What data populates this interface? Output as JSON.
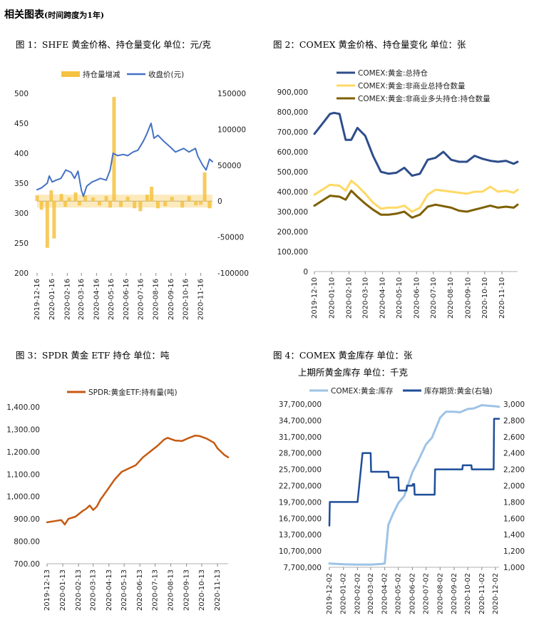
{
  "heading": {
    "main": "相关图表",
    "note": "(时间跨度为1年)"
  },
  "charts": [
    {
      "id": "fig1",
      "titles": [
        "图 1：SHFE 黄金价格、持仓量变化   单位：元/克"
      ],
      "legend": [
        "持仓量增减",
        "收盘价(元)"
      ],
      "x_ticks": [
        "2019-12-16",
        "2020-01-16",
        "2020-02-16",
        "2020-03-16",
        "2020-04-16",
        "2020-05-16",
        "2020-06-16",
        "2020-07-16",
        "2020-08-16",
        "2020-09-16",
        "2020-10-16",
        "2020-11-16"
      ],
      "y_left_ticks": [
        "500",
        "450",
        "400",
        "350",
        "300",
        "250",
        "200"
      ],
      "y_right_ticks": [
        "150000",
        "100000",
        "50000",
        "0",
        "-50000",
        "-100000"
      ]
    },
    {
      "id": "fig2",
      "titles": [
        "图 2：COMEX 黄金价格、持仓量变化   单位：张"
      ],
      "legend": [
        "COMEX:黄金:总持仓",
        "COMEX:黄金:非商业总持仓数量",
        "COMEX:黄金:非商业多头持仓:持仓数量"
      ],
      "x_ticks": [
        "2019-12-10",
        "2020-01-10",
        "2020-02-10",
        "2020-03-10",
        "2020-04-10",
        "2020-05-10",
        "2020-06-10",
        "2020-07-10",
        "2020-08-10",
        "2020-09-10",
        "2020-10-10",
        "2020-11-10"
      ],
      "y_ticks": [
        "900,000",
        "800,000",
        "700,000",
        "600,000",
        "500,000",
        "400,000",
        "300,000",
        "200,000",
        "100,000",
        "0"
      ]
    },
    {
      "id": "fig3",
      "titles": [
        "图 3：SPDR 黄金 ETF 持仓   单位：吨"
      ],
      "legend": [
        "SPDR:黄金ETF:持有量(吨)"
      ],
      "x_ticks": [
        "2019-12-13",
        "2020-01-13",
        "2020-02-13",
        "2020-03-13",
        "2020-04-13",
        "2020-05-13",
        "2020-06-13",
        "2020-07-13",
        "2020-08-13",
        "2020-09-13",
        "2020-10-13",
        "2020-11-13"
      ],
      "y_ticks": [
        "1,400.00",
        "1,300.00",
        "1,200.00",
        "1,100.00",
        "1,000.00",
        "900.00",
        "800.00",
        "700.00"
      ]
    },
    {
      "id": "fig4",
      "titles": [
        "图 4：COMEX 黄金库存   单位：张",
        "上期所黄金库存   单位：千克"
      ],
      "legend": [
        "COMEX:黄金:库存",
        "库存期货:黄金(右轴)"
      ],
      "x_ticks": [
        "2019-12-02",
        "2020-01-02",
        "2020-02-02",
        "2020-03-02",
        "2020-04-02",
        "2020-05-02",
        "2020-06-02",
        "2020-07-02",
        "2020-08-02",
        "2020-09-02",
        "2020-10-02",
        "2020-11-02",
        "2020-12-02"
      ],
      "y_left_ticks": [
        "37,700,000",
        "34,700,000",
        "31,700,000",
        "28,700,000",
        "25,700,000",
        "22,700,000",
        "19,700,000",
        "16,700,000",
        "13,700,000",
        "10,700,000",
        "7,700,000"
      ],
      "y_right_ticks": [
        "3,000",
        "2,800",
        "2,600",
        "2,400",
        "2,200",
        "2,000",
        "1,800",
        "1,600",
        "1,400",
        "1,200",
        "1,000"
      ]
    }
  ],
  "colors": {
    "orange_bar": "#F5C242",
    "blue": "#4472C4",
    "navy": "#2E4D8B",
    "yellow": "#FFD966",
    "olive": "#7F6000",
    "rust": "#C55A11",
    "lightblue": "#9DC3E6",
    "darkblue": "#1F4E99"
  },
  "chart_data": [
    {
      "type": "bar+line",
      "id": "fig1",
      "x_range": [
        "2019-12-16",
        "2020-12-10"
      ],
      "left_axis": {
        "range": [
          200,
          500
        ]
      },
      "right_axis": {
        "range": [
          -100000,
          150000
        ]
      },
      "series": [
        {
          "name": "收盘价(元)",
          "axis": "left",
          "type": "line",
          "x": [
            "2019-12-16",
            "2019-12-25",
            "2020-01-06",
            "2020-01-10",
            "2020-01-16",
            "2020-01-24",
            "2020-02-03",
            "2020-02-13",
            "2020-02-24",
            "2020-03-02",
            "2020-03-09",
            "2020-03-16",
            "2020-03-20",
            "2020-03-27",
            "2020-04-07",
            "2020-04-16",
            "2020-04-24",
            "2020-05-06",
            "2020-05-14",
            "2020-05-20",
            "2020-05-29",
            "2020-06-10",
            "2020-06-19",
            "2020-06-30",
            "2020-07-10",
            "2020-07-21",
            "2020-07-28",
            "2020-08-06",
            "2020-08-12",
            "2020-08-20",
            "2020-09-01",
            "2020-09-15",
            "2020-09-25",
            "2020-10-12",
            "2020-10-23",
            "2020-11-05",
            "2020-11-10",
            "2020-11-20",
            "2020-11-27",
            "2020-12-04",
            "2020-12-10"
          ],
          "y": [
            339,
            342,
            350,
            362,
            352,
            355,
            358,
            372,
            368,
            358,
            370,
            338,
            328,
            345,
            352,
            355,
            358,
            355,
            372,
            400,
            396,
            398,
            396,
            402,
            405,
            420,
            432,
            450,
            425,
            430,
            420,
            410,
            402,
            408,
            402,
            408,
            395,
            380,
            372,
            390,
            386
          ]
        },
        {
          "name": "持仓量增减",
          "axis": "right",
          "type": "bar",
          "x": [
            "2019-12-16",
            "2019-12-25",
            "2020-01-06",
            "2020-01-14",
            "2020-01-20",
            "2020-02-04",
            "2020-02-12",
            "2020-02-20",
            "2020-03-04",
            "2020-03-12",
            "2020-03-24",
            "2020-04-09",
            "2020-04-22",
            "2020-05-06",
            "2020-05-14",
            "2020-05-22",
            "2020-06-05",
            "2020-06-19",
            "2020-07-03",
            "2020-07-15",
            "2020-07-29",
            "2020-08-07",
            "2020-08-20",
            "2020-09-04",
            "2020-09-18",
            "2020-10-09",
            "2020-10-23",
            "2020-11-06",
            "2020-11-16",
            "2020-11-24",
            "2020-12-04"
          ],
          "y": [
            8000,
            -12000,
            -65000,
            15000,
            -52000,
            10000,
            -8000,
            5000,
            12000,
            -6000,
            8000,
            5000,
            -6000,
            7000,
            -9000,
            145000,
            -8000,
            6000,
            -10000,
            -14000,
            9000,
            20000,
            -10000,
            -7000,
            6000,
            -9000,
            7000,
            -6000,
            -5000,
            40000,
            -10000
          ]
        }
      ]
    },
    {
      "type": "line",
      "id": "fig2",
      "x_range": [
        "2019-12-10",
        "2020-12-08"
      ],
      "ylim": [
        0,
        900000
      ],
      "series": [
        {
          "name": "COMEX:黄金:总持仓",
          "x": [
            "2019-12-10",
            "2019-12-24",
            "2020-01-07",
            "2020-01-14",
            "2020-01-24",
            "2020-02-04",
            "2020-02-14",
            "2020-02-25",
            "2020-03-10",
            "2020-03-24",
            "2020-04-07",
            "2020-04-21",
            "2020-05-05",
            "2020-05-19",
            "2020-06-02",
            "2020-06-16",
            "2020-06-30",
            "2020-07-14",
            "2020-07-28",
            "2020-08-11",
            "2020-08-25",
            "2020-09-08",
            "2020-09-22",
            "2020-10-06",
            "2020-10-20",
            "2020-11-03",
            "2020-11-17",
            "2020-12-01",
            "2020-12-08"
          ],
          "y": [
            690000,
            740000,
            790000,
            795000,
            790000,
            660000,
            660000,
            720000,
            680000,
            580000,
            500000,
            490000,
            495000,
            520000,
            480000,
            490000,
            560000,
            570000,
            600000,
            560000,
            550000,
            550000,
            580000,
            565000,
            555000,
            550000,
            555000,
            540000,
            550000
          ]
        },
        {
          "name": "COMEX:黄金:非商业总持仓数量",
          "x": [
            "2019-12-10",
            "2020-01-07",
            "2020-01-24",
            "2020-02-04",
            "2020-02-14",
            "2020-02-25",
            "2020-03-10",
            "2020-03-24",
            "2020-04-07",
            "2020-04-21",
            "2020-05-05",
            "2020-05-19",
            "2020-06-02",
            "2020-06-16",
            "2020-06-30",
            "2020-07-14",
            "2020-08-11",
            "2020-08-25",
            "2020-09-08",
            "2020-09-22",
            "2020-10-06",
            "2020-10-20",
            "2020-11-03",
            "2020-11-17",
            "2020-12-01",
            "2020-12-08"
          ],
          "y": [
            385000,
            435000,
            430000,
            405000,
            455000,
            430000,
            390000,
            345000,
            315000,
            320000,
            320000,
            330000,
            300000,
            320000,
            385000,
            410000,
            400000,
            395000,
            390000,
            400000,
            400000,
            425000,
            400000,
            405000,
            395000,
            410000
          ]
        },
        {
          "name": "COMEX:黄金:非商业多头持仓:持仓数量",
          "x": [
            "2019-12-10",
            "2020-01-07",
            "2020-01-24",
            "2020-02-04",
            "2020-02-14",
            "2020-02-25",
            "2020-03-10",
            "2020-03-24",
            "2020-04-07",
            "2020-04-21",
            "2020-05-05",
            "2020-05-19",
            "2020-06-02",
            "2020-06-16",
            "2020-06-30",
            "2020-07-14",
            "2020-08-11",
            "2020-08-25",
            "2020-09-08",
            "2020-09-22",
            "2020-10-06",
            "2020-10-20",
            "2020-11-03",
            "2020-11-17",
            "2020-12-01",
            "2020-12-08"
          ],
          "y": [
            330000,
            380000,
            375000,
            360000,
            405000,
            375000,
            340000,
            310000,
            285000,
            285000,
            290000,
            300000,
            270000,
            285000,
            325000,
            335000,
            320000,
            305000,
            300000,
            310000,
            320000,
            330000,
            320000,
            325000,
            320000,
            335000
          ]
        }
      ]
    },
    {
      "type": "line",
      "id": "fig3",
      "x_range": [
        "2019-12-13",
        "2020-12-04"
      ],
      "ylim": [
        700,
        1400
      ],
      "series": [
        {
          "name": "SPDR:黄金ETF:持有量(吨)",
          "x": [
            "2019-12-13",
            "2019-12-27",
            "2020-01-10",
            "2020-01-17",
            "2020-01-24",
            "2020-02-07",
            "2020-02-21",
            "2020-02-28",
            "2020-03-06",
            "2020-03-13",
            "2020-03-20",
            "2020-03-27",
            "2020-04-10",
            "2020-04-24",
            "2020-05-08",
            "2020-05-22",
            "2020-06-05",
            "2020-06-19",
            "2020-07-03",
            "2020-07-17",
            "2020-07-31",
            "2020-08-07",
            "2020-08-21",
            "2020-09-04",
            "2020-09-18",
            "2020-09-30",
            "2020-10-09",
            "2020-10-23",
            "2020-11-06",
            "2020-11-13",
            "2020-11-27",
            "2020-12-04"
          ],
          "y": [
            885,
            890,
            895,
            875,
            900,
            910,
            935,
            945,
            960,
            940,
            955,
            985,
            1030,
            1075,
            1110,
            1125,
            1140,
            1175,
            1200,
            1225,
            1255,
            1262,
            1250,
            1248,
            1262,
            1272,
            1270,
            1258,
            1240,
            1215,
            1185,
            1175
          ]
        }
      ]
    },
    {
      "type": "line",
      "id": "fig4",
      "x_range": [
        "2019-12-02",
        "2020-12-10"
      ],
      "left_axis": {
        "range": [
          7700000,
          37700000
        ]
      },
      "right_axis": {
        "range": [
          1000,
          3000
        ]
      },
      "series": [
        {
          "name": "COMEX:黄金:库存",
          "axis": "left",
          "x": [
            "2019-12-02",
            "2020-01-02",
            "2020-02-02",
            "2020-03-02",
            "2020-03-25",
            "2020-04-02",
            "2020-04-10",
            "2020-04-20",
            "2020-05-02",
            "2020-05-15",
            "2020-06-02",
            "2020-06-15",
            "2020-07-02",
            "2020-07-15",
            "2020-08-02",
            "2020-08-15",
            "2020-09-02",
            "2020-09-15",
            "2020-10-02",
            "2020-10-15",
            "2020-11-02",
            "2020-11-15",
            "2020-12-02",
            "2020-12-10"
          ],
          "y": [
            8400000,
            8250000,
            8200000,
            8200000,
            8300000,
            8400000,
            15500000,
            17500000,
            19500000,
            20800000,
            25200000,
            27300000,
            30300000,
            31500000,
            35200000,
            36300000,
            36300000,
            36200000,
            36800000,
            36900000,
            37500000,
            37400000,
            37300000,
            37200000
          ]
        },
        {
          "name": "库存期货:黄金(右轴)",
          "axis": "right",
          "x": [
            "2019-12-02",
            "2019-12-03",
            "2019-12-12",
            "2020-01-02",
            "2020-02-02",
            "2020-02-13",
            "2020-03-02",
            "2020-03-03",
            "2020-04-10",
            "2020-04-11",
            "2020-05-02",
            "2020-05-03",
            "2020-05-20",
            "2020-05-21",
            "2020-06-02",
            "2020-06-03",
            "2020-06-06",
            "2020-06-07",
            "2020-07-02",
            "2020-07-03",
            "2020-07-21",
            "2020-07-22",
            "2020-09-02",
            "2020-09-03",
            "2020-09-20",
            "2020-09-21",
            "2020-10-10",
            "2020-10-11",
            "2020-11-02",
            "2020-11-28",
            "2020-11-29",
            "2020-12-10"
          ],
          "y": [
            1510,
            1800,
            1800,
            1800,
            1800,
            2400,
            2400,
            2170,
            2170,
            2100,
            2100,
            1940,
            1940,
            2000,
            2000,
            2020,
            2020,
            1890,
            1890,
            1890,
            1890,
            2200,
            2200,
            2200,
            2200,
            2250,
            2250,
            2200,
            2200,
            2200,
            2820,
            2820
          ]
        }
      ]
    }
  ]
}
